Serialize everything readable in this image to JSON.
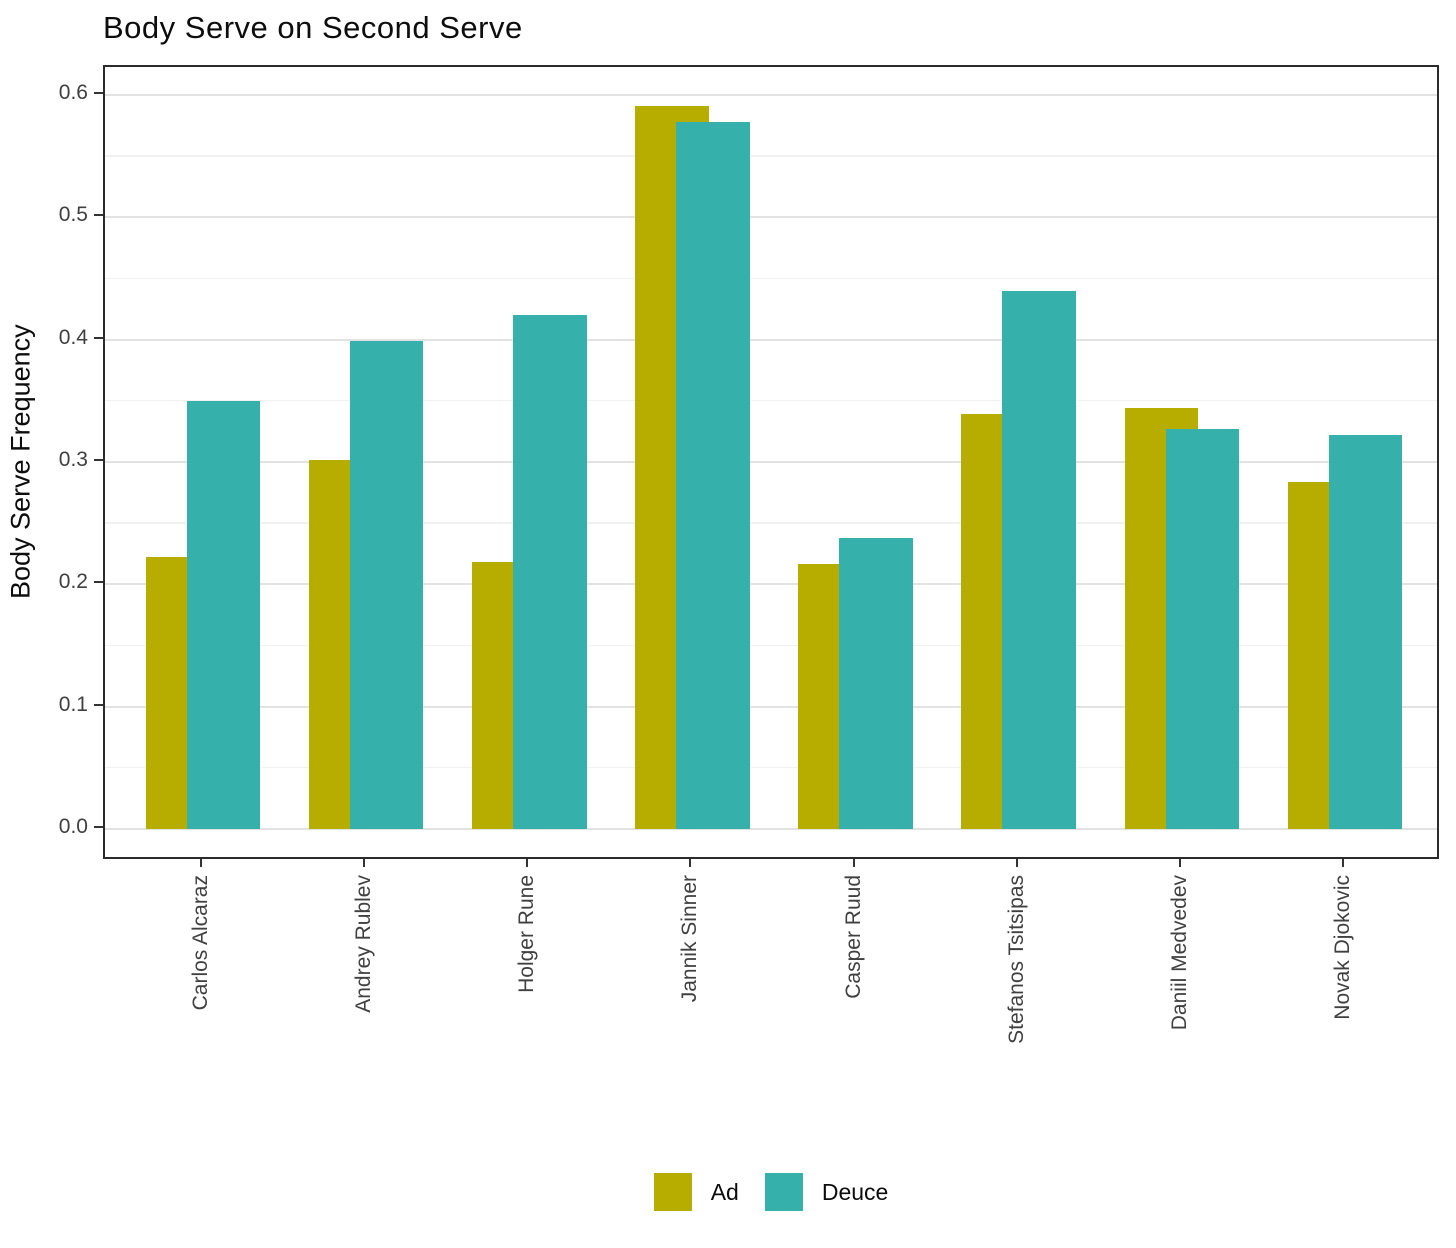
{
  "title": "Body Serve on Second Serve",
  "chart_data": {
    "type": "bar",
    "title": "Body Serve on Second Serve",
    "xlabel": "",
    "ylabel": "Body Serve Frequency",
    "categories": [
      "Carlos Alcaraz",
      "Andrey Rublev",
      "Holger Rune",
      "Jannik Sinner",
      "Casper Ruud",
      "Stefanos Tsitsipas",
      "Daniil Medvedev",
      "Novak Djokovic"
    ],
    "series": [
      {
        "name": "Ad",
        "color": "#b7ad00",
        "values": [
          0.222,
          0.302,
          0.218,
          0.591,
          0.217,
          0.339,
          0.344,
          0.284
        ]
      },
      {
        "name": "Deuce",
        "color": "#35b0ab",
        "values": [
          0.35,
          0.399,
          0.42,
          0.578,
          0.238,
          0.44,
          0.327,
          0.322
        ]
      }
    ],
    "ylim": [
      0.0,
      0.62
    ],
    "yticks": [
      0.0,
      0.1,
      0.2,
      0.3,
      0.4,
      0.5,
      0.6
    ],
    "minor_gridlines": [
      0.05,
      0.15,
      0.25,
      0.35,
      0.45,
      0.55
    ],
    "grid": "on",
    "legend_position": "bottom",
    "bar_style": "dodged-overlap"
  },
  "legend": {
    "items": [
      {
        "label": "Ad",
        "color": "#b7ad00"
      },
      {
        "label": "Deuce",
        "color": "#35b0ab"
      }
    ]
  }
}
